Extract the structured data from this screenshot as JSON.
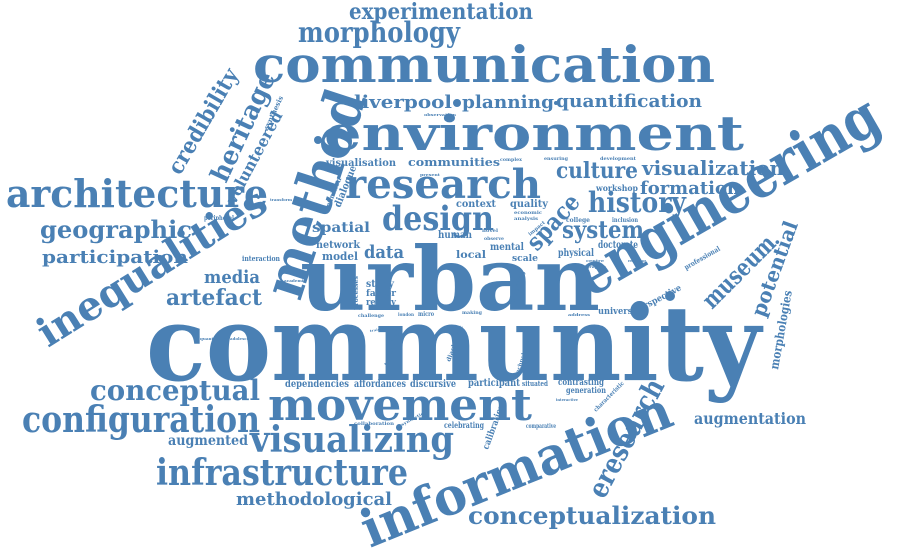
{
  "cloud": {
    "color": "#4a80b4",
    "words": {
      "community": "community",
      "urban": "urban",
      "engineering": "engineering",
      "information": "information",
      "method": "method",
      "communication": "communication",
      "environment": "environment",
      "movement": "movement",
      "research": "research",
      "architecture": "architecture",
      "inequalities": "inequalities",
      "configuration": "configuration",
      "infrastructure": "infrastructure",
      "visualizing": "visualizing",
      "design": "design",
      "conceptual": "conceptual",
      "morphology": "morphology",
      "experimentation": "experimentation",
      "history": "history",
      "heritage": "heritage",
      "credibility": "credibility",
      "volunteered": "volunteered",
      "geographic": "geographic",
      "participation": "participation",
      "artefact": "artefact",
      "media": "media",
      "liverpool": "liverpool",
      "planning": "planning",
      "quantification": "quantification",
      "visualization": "visualization",
      "formation": "formation",
      "culture": "culture",
      "system": "system",
      "space": "space",
      "museum": "museum",
      "potential": "potential",
      "eresearch": "eresearch",
      "conceptualization": "conceptualization",
      "methodological": "methodological",
      "augmented": "augmented",
      "augmentation": "augmentation",
      "dependencies": "dependencies",
      "affordances": "affordances",
      "discursive": "discursive",
      "participant": "participant",
      "situated": "situated",
      "contrasting": "contrasting",
      "generation": "generation",
      "calibration": "calibration",
      "celebrating": "celebrating",
      "comparative": "comparative",
      "characteristic": "characteristic",
      "interactive": "interactive",
      "morphologies": "morphologies",
      "perspective": "perspective",
      "professional": "professional",
      "university": "university",
      "doctorate": "doctorate",
      "physical": "physical",
      "workshop": "workshop",
      "development": "development",
      "communities": "communities",
      "visualisation": "visualisation",
      "context": "context",
      "quality": "quality",
      "spatial": "spatial",
      "human": "human",
      "network": "network",
      "model": "model",
      "data": "data",
      "local": "local",
      "mental": "mental",
      "scale": "scale",
      "study": "study",
      "factor": "factor",
      "reality": "reality",
      "processes": "processes",
      "dialogue": "dialogue",
      "definition": "definition",
      "interaction": "interaction",
      "peripheral": "peripheral",
      "synthesis": "synthesis",
      "quantitative": "quantitative",
      "adolescent": "adolescent",
      "technology": "technology",
      "technologies": "technologies",
      "diachronic": "diachronic",
      "observing": "observing",
      "collaboration": "collaboration",
      "syntactical": "syntactical",
      "challenge": "challenge",
      "college": "college",
      "inclusion": "inclusion",
      "graphic": "graphic",
      "centre": "centre",
      "complex": "complex",
      "ensuring": "ensuring",
      "economic": "economic",
      "analysis": "analysis",
      "observation": "observation",
      "novel": "novel",
      "making": "making",
      "address": "address",
      "training": "training",
      "tactile": "tactile",
      "relating": "relating",
      "observe": "observe",
      "micro": "micro",
      "london": "london",
      "impact": "impact",
      "present": "present",
      "academic": "academic",
      "transform": "transform"
    }
  }
}
